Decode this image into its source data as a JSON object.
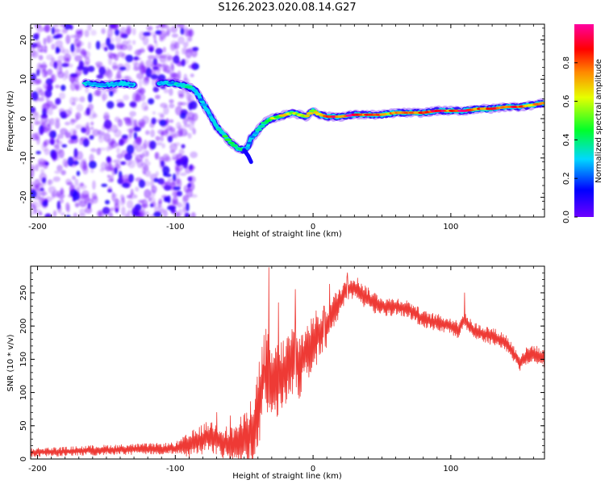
{
  "figure": {
    "title": "S126.2023.020.08.14.G27"
  },
  "colors": {
    "snr_line": "#ee3a35",
    "colormap_stops": [
      "#6e00ff",
      "#0000ff",
      "#00d8ff",
      "#00ff2a",
      "#e6ff00",
      "#ff8a00",
      "#ff0000",
      "#ff00a0"
    ]
  },
  "chart_data": [
    {
      "type": "heatmap",
      "title": "",
      "xlabel": "Height of straight line (km)",
      "ylabel": "Frequency (Hz)",
      "xlim": [
        -205,
        168
      ],
      "ylim": [
        -25,
        24
      ],
      "xticks": [
        -200,
        -100,
        0,
        100
      ],
      "yticks": [
        -20,
        -10,
        0,
        10,
        20
      ],
      "colorbar": {
        "label": "Normalized spectral amplitude",
        "range": [
          0,
          1
        ],
        "ticks": [
          0.0,
          0.2,
          0.4,
          0.6,
          0.8
        ]
      },
      "noise_region_x": [
        -205,
        -85
      ],
      "ridge": {
        "x": [
          -165,
          -150,
          -140,
          -130,
          -110,
          -100,
          -90,
          -85,
          -80,
          -75,
          -70,
          -65,
          -60,
          -55,
          -50,
          -47,
          -45,
          -40,
          -35,
          -30,
          -25,
          -20,
          -15,
          -10,
          -5,
          0,
          5,
          10,
          20,
          30,
          40,
          50,
          60,
          70,
          80,
          90,
          100,
          110,
          120,
          130,
          140,
          150,
          160,
          168
        ],
        "frequency": [
          9,
          8.5,
          9,
          8.5,
          9,
          9,
          8,
          7,
          4,
          1,
          -2,
          -4,
          -6,
          -7.5,
          -8,
          -7,
          -5,
          -3,
          -1,
          0,
          0.5,
          1,
          1.5,
          1,
          0.5,
          2,
          1,
          0.5,
          0.5,
          1,
          1,
          1,
          1.5,
          1.5,
          1.5,
          2,
          2,
          2,
          2.5,
          2.5,
          3,
          3,
          3.5,
          4
        ],
        "amplitude": [
          0.3,
          0.25,
          0.3,
          0.25,
          0.25,
          0.3,
          0.35,
          0.3,
          0.25,
          0.3,
          0.35,
          0.4,
          0.55,
          0.45,
          0.35,
          0.25,
          0.2,
          0.3,
          0.4,
          0.5,
          0.55,
          0.6,
          0.55,
          0.5,
          0.6,
          0.55,
          0.65,
          0.8,
          0.85,
          0.9,
          0.85,
          0.75,
          0.7,
          0.75,
          0.85,
          0.9,
          0.85,
          0.9,
          0.8,
          0.8,
          0.85,
          0.8,
          0.75,
          0.7
        ]
      },
      "side_lobe": {
        "x": [
          -50,
          -47,
          -45
        ],
        "frequency": [
          -8,
          -9.5,
          -11
        ]
      }
    },
    {
      "type": "line",
      "title": "",
      "xlabel": "Height of straight line (km)",
      "ylabel": "SNR (10 * v/v)",
      "xlim": [
        -205,
        168
      ],
      "ylim": [
        0,
        290
      ],
      "xticks": [
        -200,
        -100,
        0,
        100
      ],
      "yticks": [
        0,
        50,
        100,
        150,
        200,
        250
      ],
      "series": [
        {
          "values_mean": {
            "x": [
              -205,
              -180,
              -160,
              -140,
              -120,
              -100,
              -90,
              -85,
              -80,
              -75,
              -70,
              -65,
              -60,
              -55,
              -50,
              -45,
              -40,
              -35,
              -30,
              -25,
              -20,
              -15,
              -10,
              -5,
              0,
              5,
              10,
              15,
              20,
              25,
              30,
              35,
              40,
              45,
              50,
              55,
              60,
              70,
              80,
              90,
              100,
              105,
              110,
              115,
              120,
              130,
              140,
              145,
              150,
              155,
              160,
              168
            ],
            "y": [
              10,
              11,
              13,
              14,
              15,
              16,
              20,
              25,
              30,
              35,
              30,
              25,
              20,
              25,
              30,
              40,
              70,
              140,
              110,
              120,
              130,
              150,
              140,
              160,
              175,
              190,
              200,
              220,
              240,
              255,
              258,
              250,
              240,
              235,
              230,
              228,
              230,
              225,
              210,
              205,
              200,
              195,
              210,
              195,
              190,
              185,
              175,
              160,
              145,
              155,
              160,
              150
            ]
          },
          "noise_amplitude": {
            "x": [
              -205,
              -100,
              -90,
              -60,
              -50,
              -40,
              -30,
              0,
              20,
              60,
              100,
              168
            ],
            "y": [
              6,
              8,
              18,
              25,
              35,
              60,
              55,
              40,
              20,
              12,
              12,
              12
            ]
          },
          "spikes": {
            "x": [
              -70,
              -60,
              -42,
              -35,
              -32,
              -25,
              -13,
              8,
              12,
              25,
              110
            ],
            "y": [
              70,
              65,
              90,
              140,
              288,
              235,
              255,
              230,
              263,
              280,
              250
            ]
          }
        }
      ]
    }
  ]
}
